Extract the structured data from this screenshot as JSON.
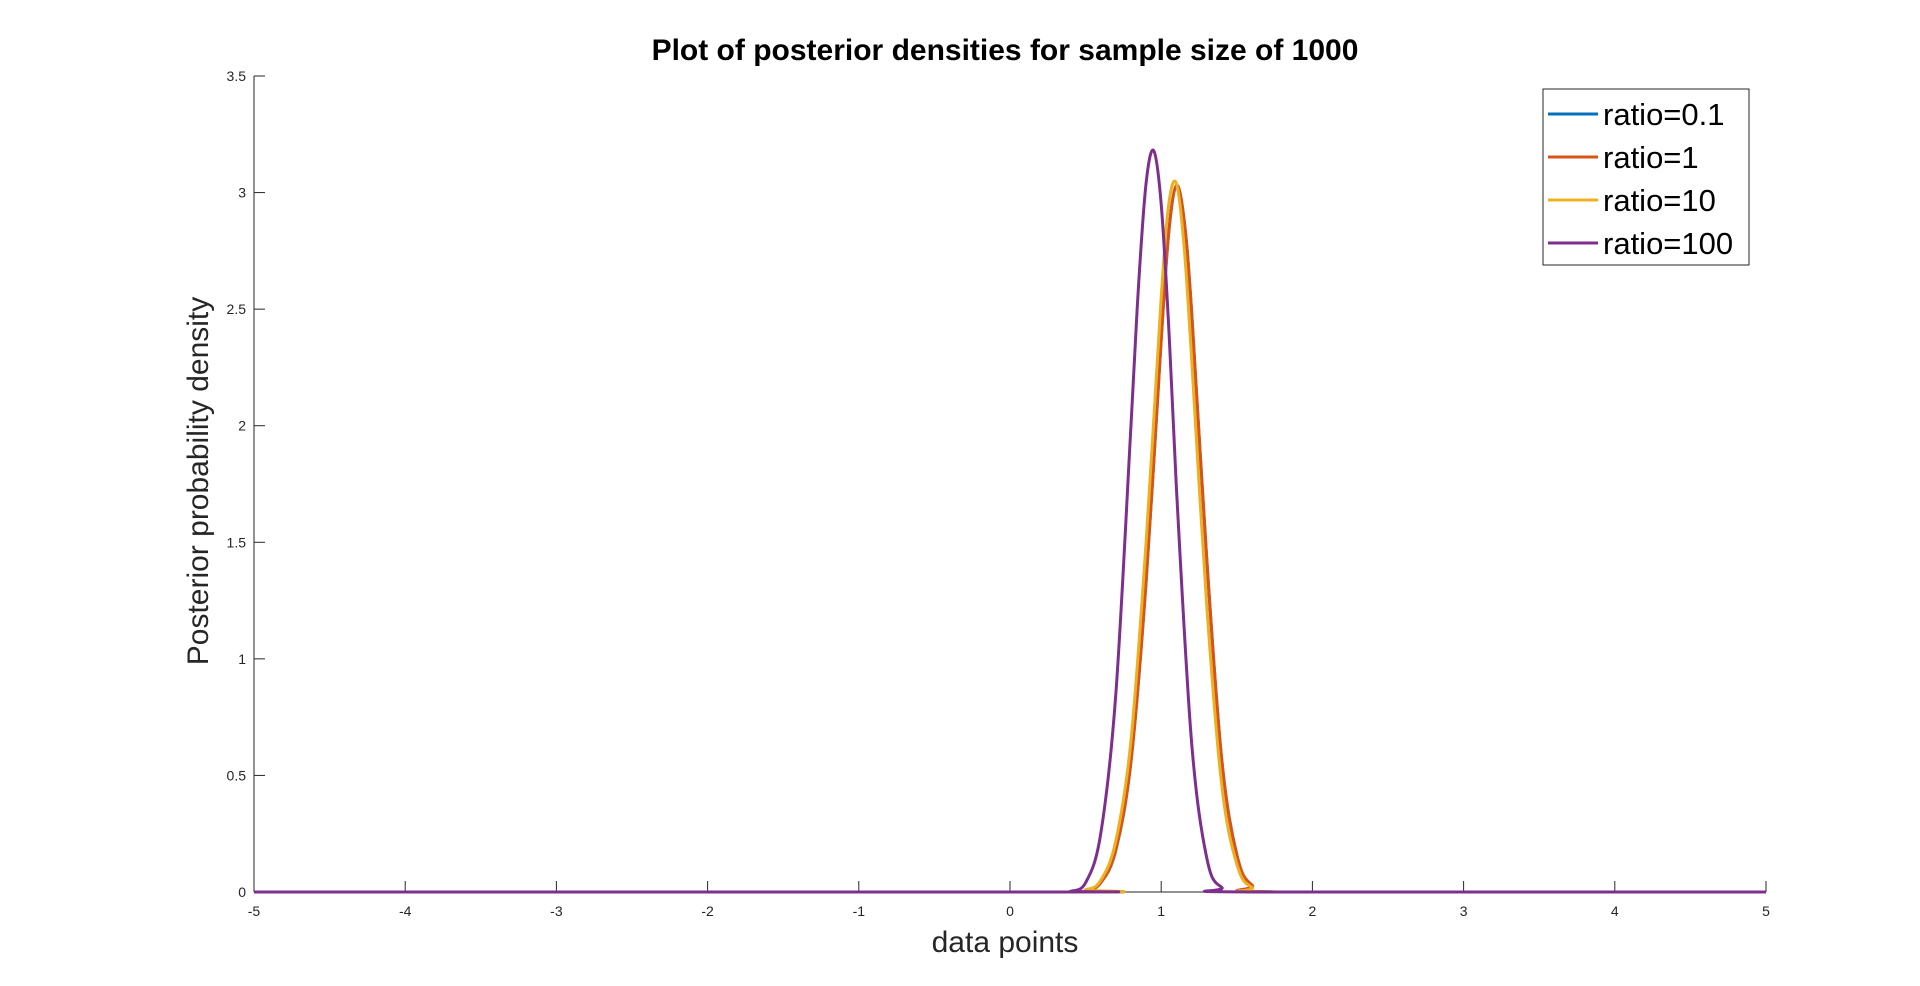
{
  "chart_data": {
    "type": "line",
    "title": "Plot of posterior densities for sample size of 1000",
    "xlabel": "data points",
    "ylabel": "Posterior probability density",
    "xlim": [
      -5,
      5
    ],
    "ylim": [
      0,
      3.5
    ],
    "x_ticks": [
      -5,
      -4,
      -3,
      -2,
      -1,
      0,
      1,
      2,
      3,
      4,
      5
    ],
    "x_tick_labels": [
      "-5",
      "-4",
      "-3",
      "-2",
      "-1",
      "0",
      "1",
      "2",
      "3",
      "4",
      "5"
    ],
    "y_ticks": [
      0,
      0.5,
      1,
      1.5,
      2,
      2.5,
      3,
      3.5
    ],
    "y_tick_labels": [
      "0",
      "0.5",
      "1",
      "1.5",
      "2",
      "2.5",
      "3",
      "3.5"
    ],
    "grid": false,
    "legend_position": "top-right",
    "series": [
      {
        "name": "ratio=0.1",
        "color": "#0072BD",
        "x": [
          -5,
          0.3,
          0.5,
          0.6,
          0.7,
          0.8,
          0.9,
          1.0,
          1.05,
          1.1,
          1.15,
          1.2,
          1.3,
          1.4,
          1.5,
          1.6,
          1.8,
          5
        ],
        "y": [
          0,
          0,
          0.007,
          0.04,
          0.18,
          0.56,
          1.33,
          2.37,
          2.83,
          3.03,
          2.89,
          2.5,
          1.44,
          0.57,
          0.16,
          0.03,
          0,
          0
        ]
      },
      {
        "name": "ratio=1",
        "color": "#D95319",
        "x": [
          -5,
          0.3,
          0.5,
          0.6,
          0.7,
          0.8,
          0.9,
          1.0,
          1.05,
          1.1,
          1.15,
          1.2,
          1.3,
          1.4,
          1.5,
          1.6,
          1.8,
          5
        ],
        "y": [
          0,
          0,
          0.007,
          0.04,
          0.18,
          0.56,
          1.33,
          2.37,
          2.83,
          3.03,
          2.89,
          2.5,
          1.44,
          0.57,
          0.16,
          0.03,
          0,
          0
        ]
      },
      {
        "name": "ratio=10",
        "color": "#EDB120",
        "x": [
          -5,
          0.3,
          0.5,
          0.6,
          0.7,
          0.8,
          0.9,
          1.0,
          1.05,
          1.1,
          1.15,
          1.2,
          1.3,
          1.4,
          1.5,
          1.6,
          1.8,
          5
        ],
        "y": [
          0,
          0,
          0.01,
          0.05,
          0.22,
          0.65,
          1.5,
          2.55,
          2.95,
          3.04,
          2.78,
          2.3,
          1.24,
          0.46,
          0.12,
          0.02,
          0,
          0
        ]
      },
      {
        "name": "ratio=100",
        "color": "#7E2F8E",
        "x": [
          -5,
          0.3,
          0.4,
          0.5,
          0.6,
          0.7,
          0.8,
          0.85,
          0.9,
          0.95,
          1.0,
          1.05,
          1.1,
          1.2,
          1.3,
          1.4,
          1.6,
          5
        ],
        "y": [
          0,
          0,
          0.003,
          0.04,
          0.25,
          0.85,
          2.0,
          2.6,
          3.04,
          3.18,
          2.95,
          2.42,
          1.74,
          0.65,
          0.15,
          0.02,
          0,
          0
        ]
      }
    ]
  }
}
